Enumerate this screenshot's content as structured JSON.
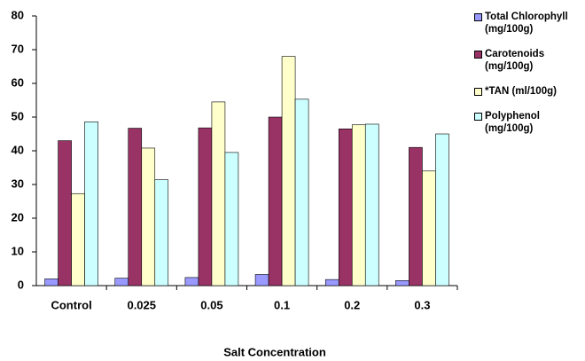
{
  "chart_data": {
    "type": "bar",
    "x_label": "Salt Concentration",
    "categories": [
      "Control",
      "0.025",
      "0.05",
      "0.1",
      "0.2",
      "0.3"
    ],
    "series": [
      {
        "name": "Total Chlorophyll (mg/100g)",
        "color": "#9999ff",
        "values": [
          2,
          2.2,
          2.4,
          3.3,
          1.8,
          1.5
        ]
      },
      {
        "name": "Carotenoids (mg/100g)",
        "color": "#993366",
        "values": [
          43,
          46.7,
          46.8,
          50,
          46.5,
          41
        ]
      },
      {
        "name": "*TAN (ml/100g)",
        "color": "#ffffcc",
        "values": [
          27.3,
          40.8,
          54.5,
          68,
          47.7,
          34
        ]
      },
      {
        "name": "Polyphenol (mg/100g)",
        "color": "#ccffff",
        "values": [
          48.6,
          31.4,
          39.5,
          55.3,
          47.9,
          45
        ]
      }
    ],
    "ylim": [
      0,
      80
    ],
    "yticks": [
      0,
      10,
      20,
      30,
      40,
      50,
      60,
      70,
      80
    ],
    "grid": false,
    "legend": "right"
  }
}
